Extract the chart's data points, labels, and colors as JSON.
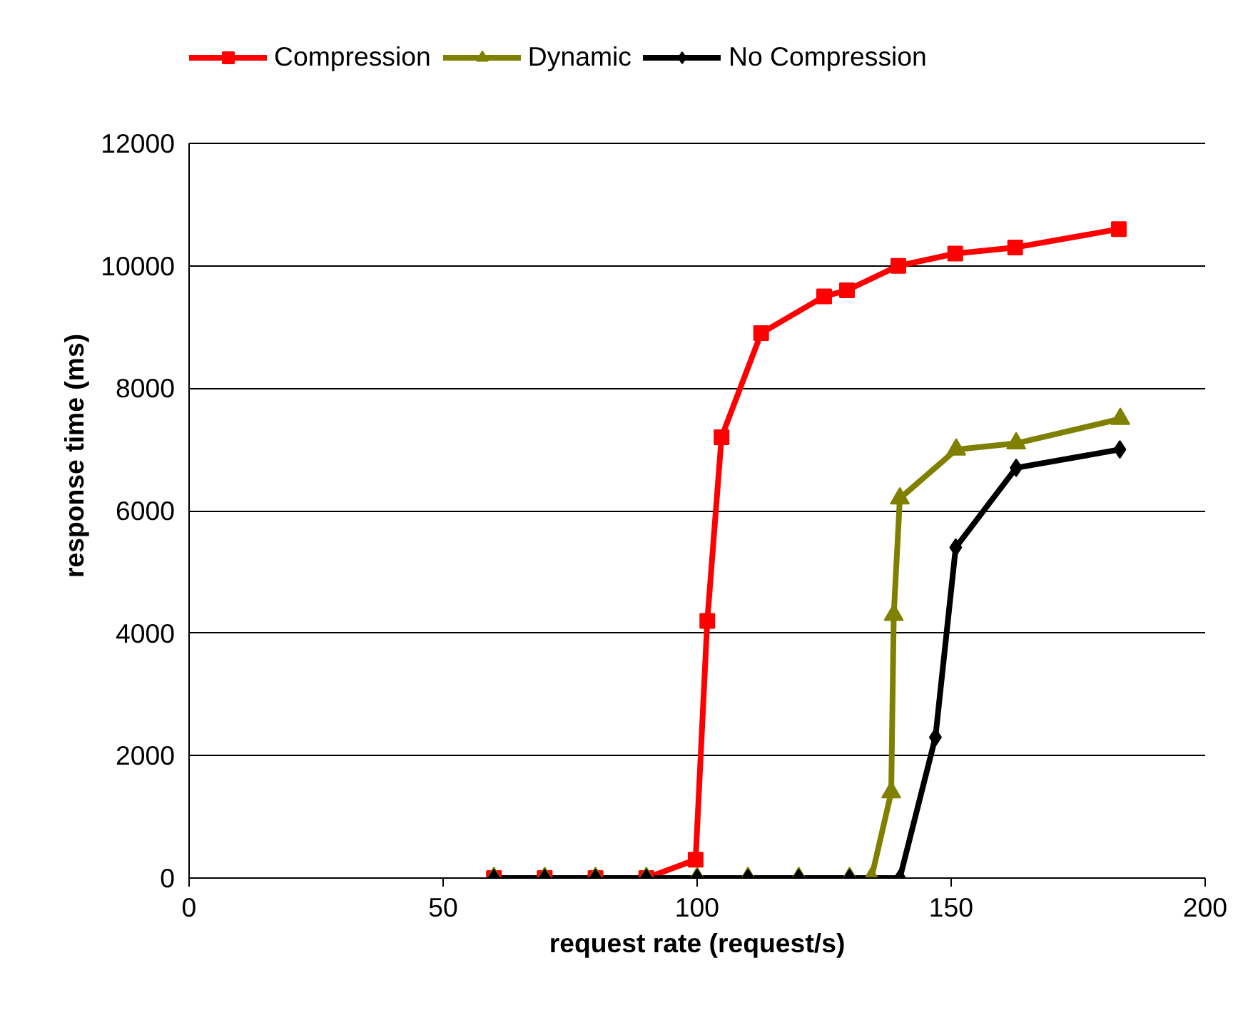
{
  "chart_data": {
    "type": "line",
    "xlabel": "request rate (request/s)",
    "ylabel": "response time (ms)",
    "xlim": [
      0,
      200
    ],
    "xticks": [
      0,
      50,
      100,
      150,
      200
    ],
    "ylim": [
      0,
      12000
    ],
    "yticks": [
      0,
      2000,
      4000,
      6000,
      8000,
      10000,
      12000
    ],
    "grid": "y",
    "legend": "top",
    "line_style": "solid",
    "series": [
      {
        "name": "Compression",
        "color": "#ff0000",
        "marker": "square",
        "x": [
          60,
          70,
          80,
          90,
          99.7,
          102,
          104.8,
          112.6,
          125,
          129.5,
          139.6,
          150.8,
          162.6,
          183
        ],
        "values": [
          0,
          0,
          0,
          0,
          300,
          4200,
          7200,
          8900,
          9500,
          9600,
          10000,
          10200,
          10300,
          10600
        ]
      },
      {
        "name": "Dynamic",
        "color": "#808000",
        "marker": "triangle",
        "x": [
          60,
          70,
          80,
          90,
          100,
          110,
          120,
          130,
          134.3,
          138.2,
          138.7,
          139.9,
          151,
          162.8,
          183.3
        ],
        "values": [
          0,
          0,
          0,
          0,
          0,
          0,
          0,
          0,
          0,
          1400,
          4300,
          6200,
          7000,
          7100,
          7500
        ]
      },
      {
        "name": "No Compression",
        "color": "#000000",
        "marker": "diamond",
        "x": [
          60,
          70,
          80,
          90,
          100,
          110,
          120,
          130,
          139.9,
          146.9,
          150.9,
          162.8,
          183.2
        ],
        "values": [
          0,
          0,
          0,
          0,
          0,
          0,
          0,
          0,
          0,
          2300,
          5400,
          6700,
          7000
        ]
      }
    ]
  }
}
